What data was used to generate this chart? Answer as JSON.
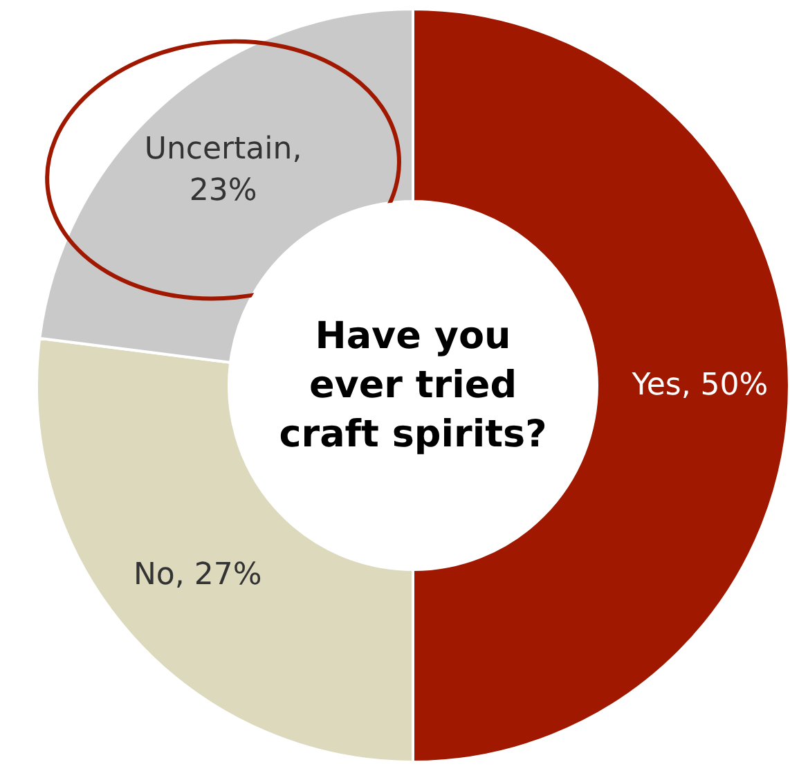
{
  "chart_data": {
    "type": "donut",
    "title": "Have you\never tried\ncraft spirits?",
    "categories": [
      "Yes",
      "No",
      "Uncertain"
    ],
    "values": [
      50,
      27,
      23
    ],
    "colors": [
      "#a01800",
      "#dcd9bc",
      "#c9c9c9"
    ],
    "value_labels": [
      ", 50%",
      ", 27%",
      ",\n23%"
    ],
    "legend": false
  }
}
